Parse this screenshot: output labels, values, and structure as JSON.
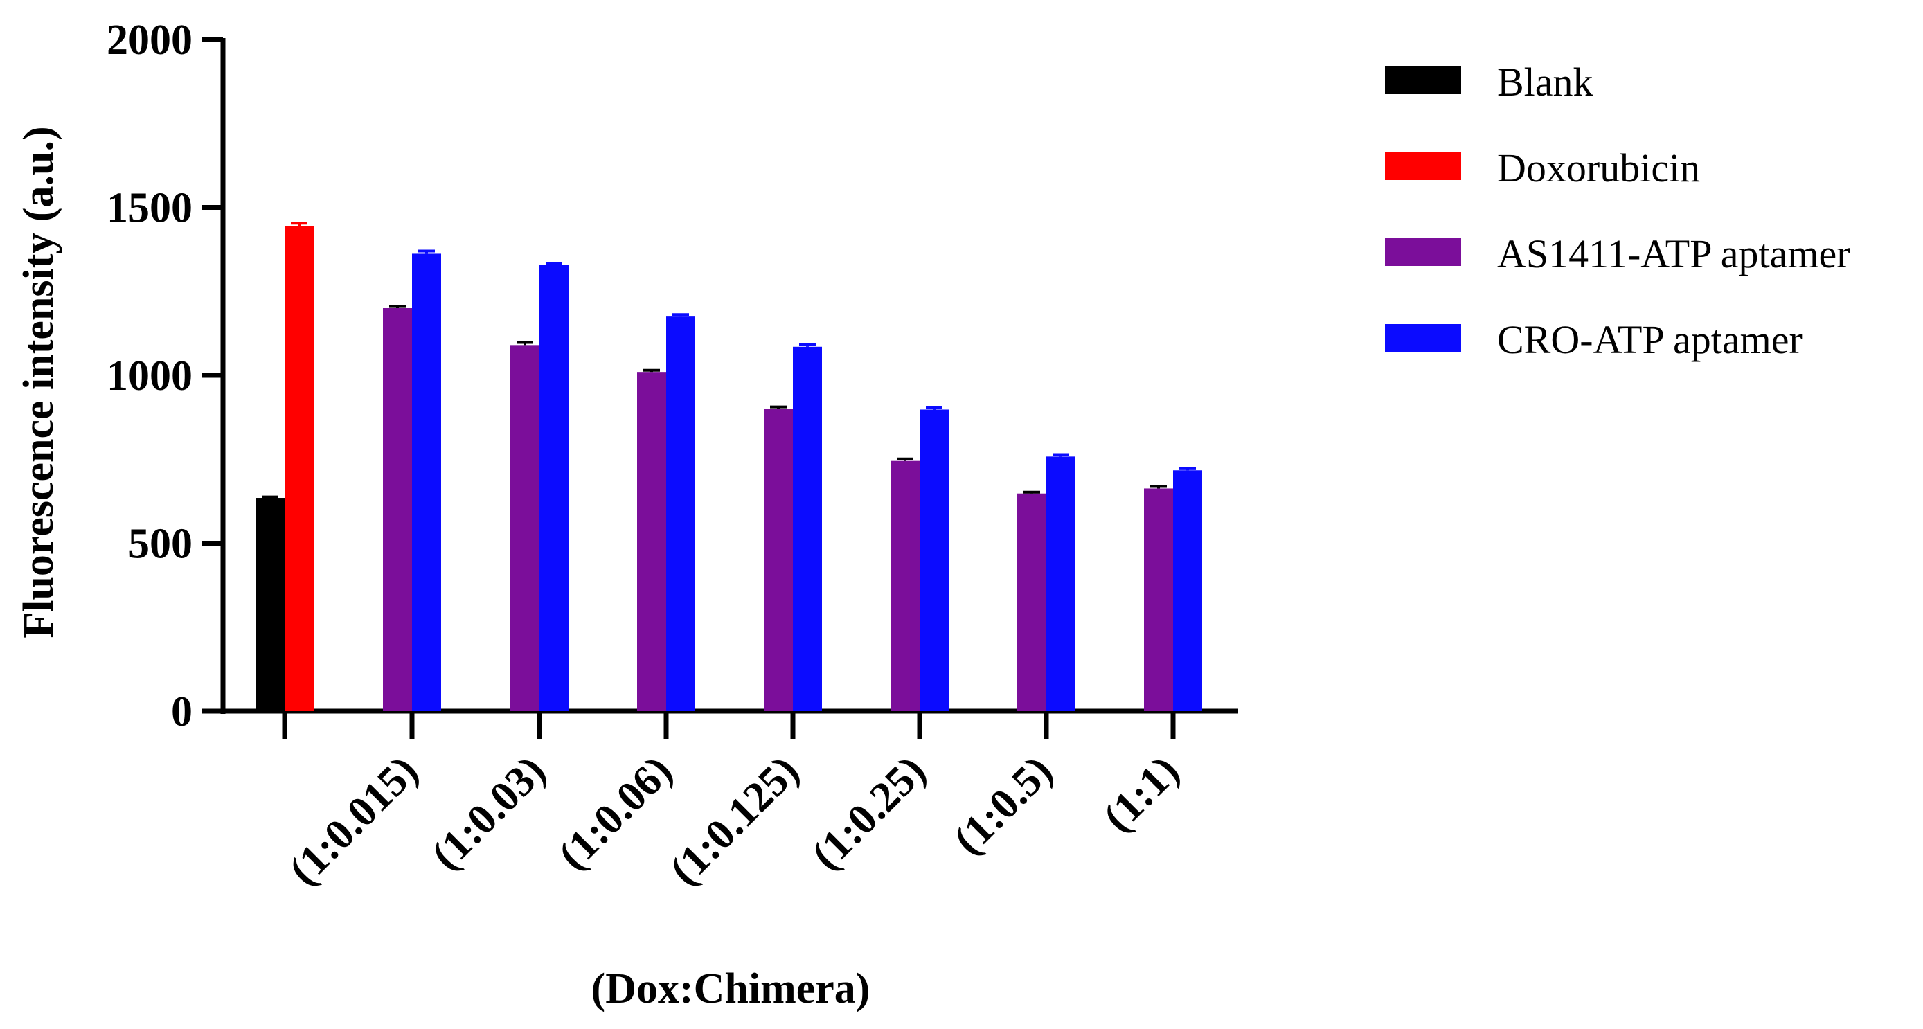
{
  "chart_data": {
    "type": "bar",
    "title": "",
    "ylabel": "Fluorescence intensity (a.u.)",
    "xlabel": "(Dox:Chimera)",
    "ylim": [
      0,
      2000
    ],
    "yticks": [
      0,
      500,
      1000,
      1500,
      2000
    ],
    "grid": false,
    "legend_position": "top-right",
    "categories": [
      "",
      "(1:0.015)",
      "(1:0.03)",
      "(1:0.06)",
      "(1:0.125)",
      "(1:0.25)",
      "(1:0.5)",
      "(1:1)"
    ],
    "series": [
      {
        "name": "Blank",
        "color": "#000000",
        "values": [
          635,
          null,
          null,
          null,
          null,
          null,
          null,
          null
        ],
        "errors": [
          3,
          null,
          null,
          null,
          null,
          null,
          null,
          null
        ]
      },
      {
        "name": "Doxorubicin",
        "color": "#ff0000",
        "values": [
          1445,
          null,
          null,
          null,
          null,
          null,
          null,
          null
        ],
        "errors": [
          8,
          null,
          null,
          null,
          null,
          null,
          null,
          null
        ]
      },
      {
        "name": "AS1411-ATP aptamer",
        "color": "#7b0e9a",
        "values": [
          null,
          1200,
          1090,
          1010,
          900,
          745,
          648,
          663
        ],
        "errors": [
          null,
          5,
          8,
          5,
          6,
          6,
          4,
          6
        ]
      },
      {
        "name": "CRO-ATP aptamer",
        "color": "#0b0bff",
        "values": [
          null,
          1362,
          1328,
          1175,
          1085,
          898,
          758,
          717
        ],
        "errors": [
          null,
          8,
          6,
          6,
          6,
          7,
          6,
          5
        ]
      }
    ]
  }
}
